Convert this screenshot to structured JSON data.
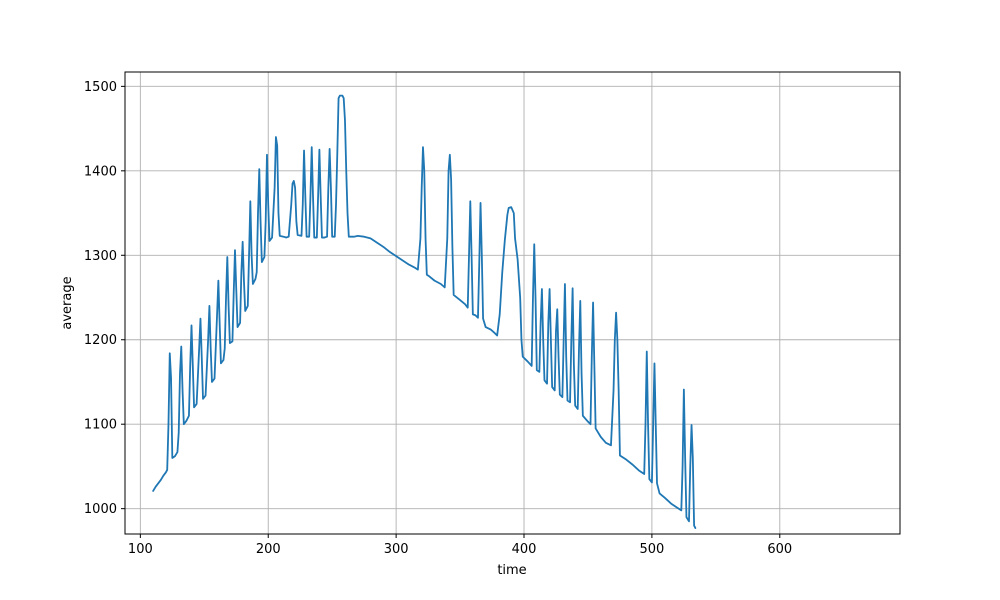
{
  "chart_data": {
    "type": "line",
    "title": "",
    "xlabel": "time",
    "ylabel": "average",
    "xlim": [
      88,
      694
    ],
    "ylim": [
      970,
      1517
    ],
    "xticks": [
      100,
      200,
      300,
      400,
      500,
      600
    ],
    "yticks": [
      1000,
      1100,
      1200,
      1300,
      1400,
      1500
    ],
    "grid": true,
    "legend": "none",
    "colors": {
      "line": "#1f77b4",
      "grid": "#b0b0b0"
    },
    "series": [
      {
        "points": [
          [
            110,
            1021
          ],
          [
            112,
            1026
          ],
          [
            114,
            1030
          ],
          [
            116,
            1034
          ],
          [
            118,
            1039
          ],
          [
            120,
            1043
          ],
          [
            121,
            1046
          ],
          [
            122,
            1100
          ],
          [
            123,
            1184
          ],
          [
            124,
            1155
          ],
          [
            125,
            1060
          ],
          [
            127,
            1062
          ],
          [
            129,
            1067
          ],
          [
            130,
            1090
          ],
          [
            131,
            1160
          ],
          [
            132,
            1192
          ],
          [
            133,
            1140
          ],
          [
            134,
            1100
          ],
          [
            136,
            1104
          ],
          [
            138,
            1110
          ],
          [
            139,
            1170
          ],
          [
            140,
            1217
          ],
          [
            141,
            1170
          ],
          [
            142,
            1120
          ],
          [
            144,
            1124
          ],
          [
            146,
            1190
          ],
          [
            147,
            1225
          ],
          [
            148,
            1180
          ],
          [
            149,
            1130
          ],
          [
            151,
            1134
          ],
          [
            153,
            1200
          ],
          [
            154,
            1240
          ],
          [
            155,
            1190
          ],
          [
            156,
            1150
          ],
          [
            158,
            1154
          ],
          [
            160,
            1230
          ],
          [
            161,
            1270
          ],
          [
            162,
            1220
          ],
          [
            163,
            1172
          ],
          [
            165,
            1176
          ],
          [
            166,
            1190
          ],
          [
            167,
            1250
          ],
          [
            168,
            1298
          ],
          [
            169,
            1240
          ],
          [
            170,
            1196
          ],
          [
            172,
            1198
          ],
          [
            173,
            1255
          ],
          [
            174,
            1306
          ],
          [
            175,
            1260
          ],
          [
            176,
            1215
          ],
          [
            178,
            1220
          ],
          [
            179,
            1280
          ],
          [
            180,
            1316
          ],
          [
            181,
            1270
          ],
          [
            182,
            1234
          ],
          [
            184,
            1240
          ],
          [
            185,
            1300
          ],
          [
            186,
            1364
          ],
          [
            187,
            1300
          ],
          [
            188,
            1266
          ],
          [
            190,
            1272
          ],
          [
            191,
            1280
          ],
          [
            192,
            1350
          ],
          [
            193,
            1402
          ],
          [
            194,
            1340
          ],
          [
            195,
            1292
          ],
          [
            197,
            1298
          ],
          [
            198,
            1340
          ],
          [
            199,
            1419
          ],
          [
            200,
            1360
          ],
          [
            201,
            1317
          ],
          [
            203,
            1321
          ],
          [
            205,
            1380
          ],
          [
            206,
            1440
          ],
          [
            207,
            1430
          ],
          [
            208,
            1350
          ],
          [
            209,
            1323
          ],
          [
            212,
            1322
          ],
          [
            214,
            1321
          ],
          [
            216,
            1322
          ],
          [
            218,
            1360
          ],
          [
            219,
            1385
          ],
          [
            220,
            1388
          ],
          [
            221,
            1380
          ],
          [
            222,
            1340
          ],
          [
            223,
            1324
          ],
          [
            226,
            1323
          ],
          [
            227,
            1360
          ],
          [
            228,
            1424
          ],
          [
            229,
            1370
          ],
          [
            230,
            1322
          ],
          [
            232,
            1322
          ],
          [
            233,
            1370
          ],
          [
            234,
            1428
          ],
          [
            235,
            1370
          ],
          [
            236,
            1321
          ],
          [
            238,
            1321
          ],
          [
            239,
            1370
          ],
          [
            240,
            1425
          ],
          [
            241,
            1370
          ],
          [
            242,
            1321
          ],
          [
            244,
            1321
          ],
          [
            246,
            1322
          ],
          [
            247,
            1380
          ],
          [
            248,
            1426
          ],
          [
            249,
            1380
          ],
          [
            250,
            1322
          ],
          [
            252,
            1322
          ],
          [
            253,
            1360
          ],
          [
            254,
            1420
          ],
          [
            255,
            1486
          ],
          [
            256,
            1489
          ],
          [
            258,
            1489
          ],
          [
            259,
            1486
          ],
          [
            260,
            1460
          ],
          [
            261,
            1400
          ],
          [
            262,
            1350
          ],
          [
            263,
            1322
          ],
          [
            267,
            1322
          ],
          [
            270,
            1323
          ],
          [
            275,
            1322
          ],
          [
            280,
            1320
          ],
          [
            285,
            1315
          ],
          [
            290,
            1310
          ],
          [
            295,
            1304
          ],
          [
            300,
            1299
          ],
          [
            305,
            1294
          ],
          [
            310,
            1289
          ],
          [
            315,
            1285
          ],
          [
            317,
            1283
          ],
          [
            319,
            1320
          ],
          [
            320,
            1380
          ],
          [
            321,
            1428
          ],
          [
            322,
            1400
          ],
          [
            323,
            1320
          ],
          [
            324,
            1277
          ],
          [
            326,
            1275
          ],
          [
            330,
            1270
          ],
          [
            335,
            1266
          ],
          [
            338,
            1262
          ],
          [
            340,
            1320
          ],
          [
            341,
            1400
          ],
          [
            342,
            1419
          ],
          [
            343,
            1390
          ],
          [
            344,
            1310
          ],
          [
            345,
            1253
          ],
          [
            350,
            1247
          ],
          [
            354,
            1242
          ],
          [
            356,
            1238
          ],
          [
            357,
            1300
          ],
          [
            358,
            1364
          ],
          [
            359,
            1300
          ],
          [
            360,
            1230
          ],
          [
            362,
            1229
          ],
          [
            364,
            1226
          ],
          [
            365,
            1290
          ],
          [
            366,
            1362
          ],
          [
            367,
            1300
          ],
          [
            368,
            1225
          ],
          [
            370,
            1215
          ],
          [
            374,
            1212
          ],
          [
            377,
            1208
          ],
          [
            379,
            1205
          ],
          [
            381,
            1230
          ],
          [
            383,
            1280
          ],
          [
            385,
            1318
          ],
          [
            387,
            1348
          ],
          [
            388,
            1356
          ],
          [
            390,
            1357
          ],
          [
            392,
            1350
          ],
          [
            393,
            1320
          ],
          [
            395,
            1295
          ],
          [
            397,
            1250
          ],
          [
            398,
            1200
          ],
          [
            399,
            1180
          ],
          [
            403,
            1174
          ],
          [
            406,
            1169
          ],
          [
            407,
            1250
          ],
          [
            408,
            1313
          ],
          [
            409,
            1250
          ],
          [
            410,
            1164
          ],
          [
            412,
            1162
          ],
          [
            413,
            1220
          ],
          [
            414,
            1260
          ],
          [
            415,
            1200
          ],
          [
            416,
            1152
          ],
          [
            418,
            1148
          ],
          [
            419,
            1220
          ],
          [
            420,
            1260
          ],
          [
            421,
            1200
          ],
          [
            422,
            1144
          ],
          [
            424,
            1140
          ],
          [
            425,
            1210
          ],
          [
            426,
            1236
          ],
          [
            427,
            1180
          ],
          [
            428,
            1135
          ],
          [
            430,
            1132
          ],
          [
            431,
            1200
          ],
          [
            432,
            1266
          ],
          [
            433,
            1180
          ],
          [
            434,
            1128
          ],
          [
            436,
            1126
          ],
          [
            437,
            1200
          ],
          [
            438,
            1261
          ],
          [
            439,
            1170
          ],
          [
            440,
            1122
          ],
          [
            442,
            1118
          ],
          [
            443,
            1190
          ],
          [
            444,
            1246
          ],
          [
            445,
            1160
          ],
          [
            446,
            1110
          ],
          [
            450,
            1103
          ],
          [
            452,
            1100
          ],
          [
            453,
            1180
          ],
          [
            454,
            1244
          ],
          [
            455,
            1170
          ],
          [
            456,
            1095
          ],
          [
            460,
            1085
          ],
          [
            464,
            1078
          ],
          [
            468,
            1075
          ],
          [
            470,
            1140
          ],
          [
            471,
            1200
          ],
          [
            472,
            1232
          ],
          [
            473,
            1200
          ],
          [
            474,
            1140
          ],
          [
            475,
            1063
          ],
          [
            480,
            1058
          ],
          [
            485,
            1052
          ],
          [
            490,
            1045
          ],
          [
            494,
            1041
          ],
          [
            495,
            1100
          ],
          [
            496,
            1186
          ],
          [
            497,
            1100
          ],
          [
            498,
            1035
          ],
          [
            500,
            1031
          ],
          [
            501,
            1100
          ],
          [
            502,
            1172
          ],
          [
            503,
            1100
          ],
          [
            504,
            1030
          ],
          [
            506,
            1018
          ],
          [
            510,
            1013
          ],
          [
            515,
            1006
          ],
          [
            520,
            1001
          ],
          [
            523,
            998
          ],
          [
            524,
            1050
          ],
          [
            525,
            1141
          ],
          [
            526,
            1060
          ],
          [
            527,
            990
          ],
          [
            529,
            985
          ],
          [
            530,
            1050
          ],
          [
            531,
            1099
          ],
          [
            532,
            1060
          ],
          [
            533,
            980
          ],
          [
            534,
            977
          ]
        ]
      }
    ]
  }
}
